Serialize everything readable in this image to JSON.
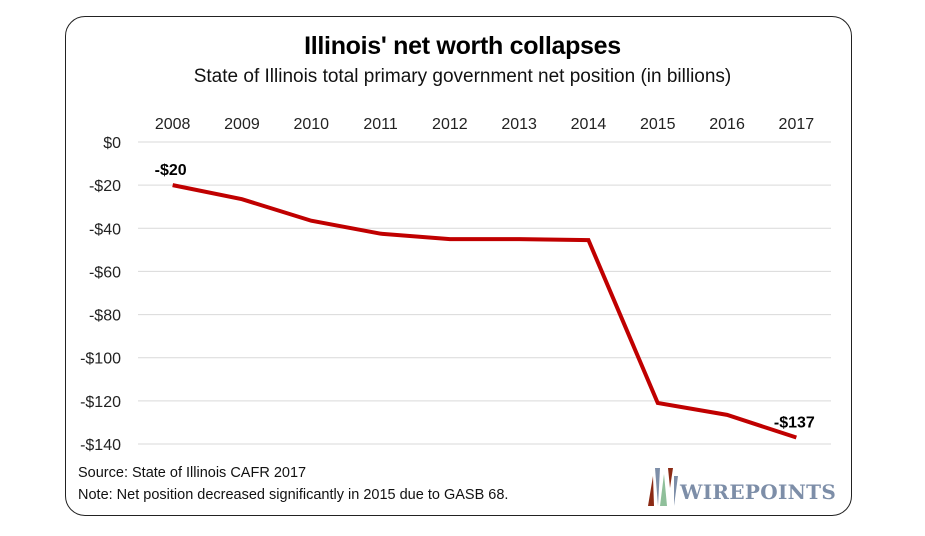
{
  "chart_data": {
    "type": "line",
    "title": "Illinois' net worth collapses",
    "subtitle": "State of Illinois total primary government net position (in billions)",
    "xlabel": "",
    "ylabel": "",
    "categories": [
      "2008",
      "2009",
      "2010",
      "2011",
      "2012",
      "2013",
      "2014",
      "2015",
      "2016",
      "2017"
    ],
    "series": [
      {
        "name": "Net position",
        "color": "#c00000",
        "values": [
          -20,
          -26.5,
          -36.5,
          -42.5,
          -45,
          -45,
          -45.5,
          -121,
          -126.5,
          -137
        ]
      }
    ],
    "ylim": [
      -140,
      0
    ],
    "yticks": [
      0,
      -20,
      -40,
      -60,
      -80,
      -100,
      -120,
      -140
    ],
    "ytick_labels": [
      "$0",
      "-$20",
      "-$40",
      "-$60",
      "-$80",
      "-$100",
      "-$120",
      "-$140"
    ],
    "x_axis_position": "top",
    "grid": true,
    "data_labels": [
      {
        "category": "2008",
        "text": "-$20"
      },
      {
        "category": "2017",
        "text": "-$137"
      }
    ],
    "legend": "none"
  },
  "footer": {
    "source": "Source: State of Illinois CAFR 2017",
    "note": "Note: Net position decreased significantly in 2015 due to GASB 68."
  },
  "logo": {
    "text": "WIREPOINTS",
    "colors": {
      "rust": "#8b2a14",
      "blue": "#7d8ea8",
      "green": "#8fbf9a"
    }
  }
}
